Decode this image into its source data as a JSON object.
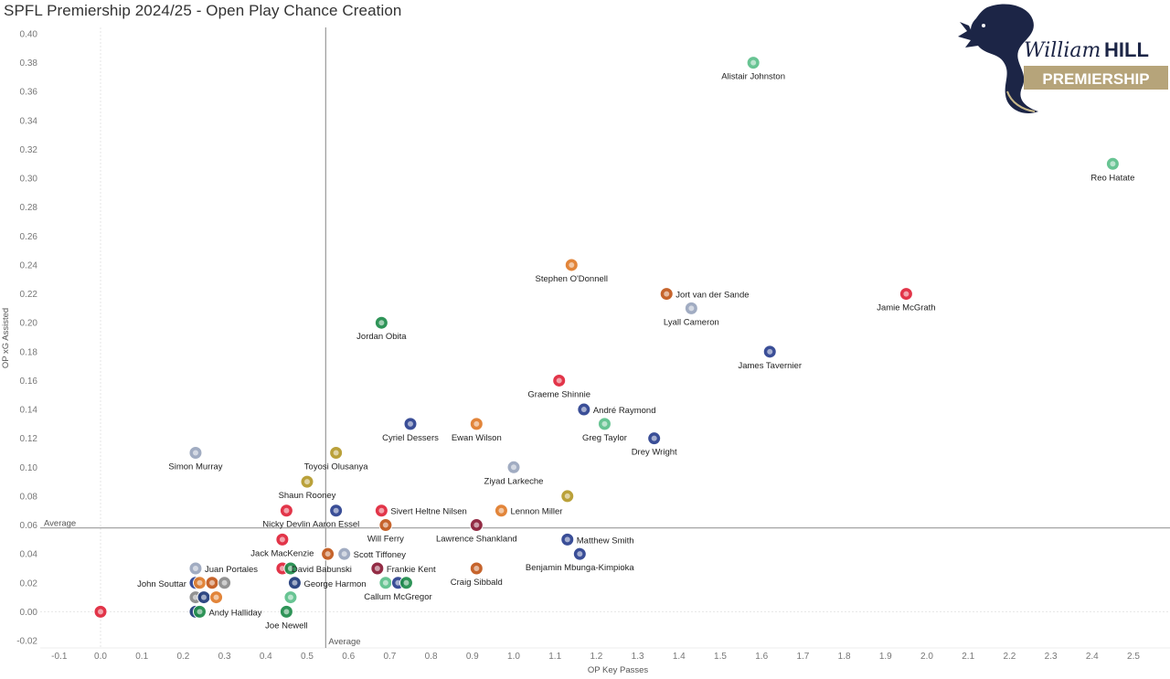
{
  "title": "SPFL Premiership 2024/25 - Open Play Chance Creation",
  "logo": {
    "brand_script": "William",
    "brand_bold": "HILL",
    "banner": "PREMIERSHIP"
  },
  "colors": {
    "celtic": "#5cbf8a",
    "aberdeen": "#e0243a",
    "motherwell": "#e07b2a",
    "dundee_utd": "#c2571b",
    "dundee": "#9aa6bd",
    "rangers": "#2a3f8f",
    "st_johnstone": "#2a3f8f",
    "st_mirren": "#b59a2a",
    "hearts": "#8a1b36",
    "hibernian": "#1e8c4a",
    "ross_county": "#1f3a7a",
    "kilmarnock": "#8a8a8a"
  },
  "chart_data": {
    "type": "scatter",
    "title": "SPFL Premiership 2024/25 - Open Play Chance Creation",
    "xlabel": "OP Key Passes",
    "ylabel": "OP xG Assisted",
    "xlim": [
      -0.15,
      2.58
    ],
    "ylim": [
      -0.025,
      0.405
    ],
    "xticks": [
      "-0.1",
      "0.0",
      "0.1",
      "0.2",
      "0.3",
      "0.4",
      "0.5",
      "0.6",
      "0.7",
      "0.8",
      "0.9",
      "1.0",
      "1.1",
      "1.2",
      "1.3",
      "1.4",
      "1.5",
      "1.6",
      "1.7",
      "1.8",
      "1.9",
      "2.0",
      "2.1",
      "2.2",
      "2.3",
      "2.4",
      "2.5"
    ],
    "yticks": [
      "-0.02",
      "0.00",
      "0.02",
      "0.04",
      "0.06",
      "0.08",
      "0.10",
      "0.12",
      "0.14",
      "0.16",
      "0.18",
      "0.20",
      "0.22",
      "0.24",
      "0.26",
      "0.28",
      "0.30",
      "0.32",
      "0.34",
      "0.36",
      "0.38",
      "0.40"
    ],
    "grid": false,
    "reference_lines": [
      {
        "axis": "x",
        "value": 0.545,
        "label": "Average"
      },
      {
        "axis": "y",
        "value": 0.058,
        "label": "Average"
      }
    ],
    "points": [
      {
        "name": "Alistair Johnston",
        "x": 1.58,
        "y": 0.38,
        "team": "celtic",
        "label_pos": "below"
      },
      {
        "name": "Reo Hatate",
        "x": 2.45,
        "y": 0.31,
        "team": "celtic",
        "label_pos": "below"
      },
      {
        "name": "Stephen O'Donnell",
        "x": 1.14,
        "y": 0.24,
        "team": "motherwell",
        "label_pos": "below"
      },
      {
        "name": "Jort van der Sande",
        "x": 1.37,
        "y": 0.22,
        "team": "dundee_utd",
        "label_pos": "right"
      },
      {
        "name": "Lyall Cameron",
        "x": 1.43,
        "y": 0.21,
        "team": "dundee",
        "label_pos": "below"
      },
      {
        "name": "Jamie McGrath",
        "x": 1.95,
        "y": 0.22,
        "team": "aberdeen",
        "label_pos": "below"
      },
      {
        "name": "Jordan Obita",
        "x": 0.68,
        "y": 0.2,
        "team": "hibernian",
        "label_pos": "below"
      },
      {
        "name": "James Tavernier",
        "x": 1.62,
        "y": 0.18,
        "team": "rangers",
        "label_pos": "below"
      },
      {
        "name": "Graeme Shinnie",
        "x": 1.11,
        "y": 0.16,
        "team": "aberdeen",
        "label_pos": "below"
      },
      {
        "name": "André Raymond",
        "x": 1.17,
        "y": 0.14,
        "team": "st_johnstone",
        "label_pos": "right"
      },
      {
        "name": "Greg Taylor",
        "x": 1.22,
        "y": 0.13,
        "team": "celtic",
        "label_pos": "below"
      },
      {
        "name": "Drey Wright",
        "x": 1.34,
        "y": 0.12,
        "team": "st_johnstone",
        "label_pos": "below"
      },
      {
        "name": "Cyriel Dessers",
        "x": 0.75,
        "y": 0.13,
        "team": "rangers",
        "label_pos": "below"
      },
      {
        "name": "Ewan Wilson",
        "x": 0.91,
        "y": 0.13,
        "team": "motherwell",
        "label_pos": "below"
      },
      {
        "name": "Simon Murray",
        "x": 0.23,
        "y": 0.11,
        "team": "dundee",
        "label_pos": "below"
      },
      {
        "name": "Toyosi Olusanya",
        "x": 0.57,
        "y": 0.11,
        "team": "st_mirren",
        "label_pos": "below"
      },
      {
        "name": "Ziyad Larkeche",
        "x": 1.0,
        "y": 0.1,
        "team": "dundee",
        "label_pos": "below"
      },
      {
        "name": "Shaun Rooney",
        "x": 0.5,
        "y": 0.09,
        "team": "st_mirren",
        "label_pos": "below"
      },
      {
        "name": "",
        "x": 1.13,
        "y": 0.08,
        "team": "st_mirren",
        "label_pos": "none"
      },
      {
        "name": "Nicky Devlin",
        "x": 0.45,
        "y": 0.07,
        "team": "aberdeen",
        "label_pos": "below"
      },
      {
        "name": "Aaron Essel",
        "x": 0.57,
        "y": 0.07,
        "team": "st_johnstone",
        "label_pos": "below"
      },
      {
        "name": "Sivert Heltne Nilsen",
        "x": 0.68,
        "y": 0.07,
        "team": "aberdeen",
        "label_pos": "right"
      },
      {
        "name": "Lennon Miller",
        "x": 0.97,
        "y": 0.07,
        "team": "motherwell",
        "label_pos": "right"
      },
      {
        "name": "Will Ferry",
        "x": 0.69,
        "y": 0.06,
        "team": "dundee_utd",
        "label_pos": "below"
      },
      {
        "name": "Lawrence Shankland",
        "x": 0.91,
        "y": 0.06,
        "team": "hearts",
        "label_pos": "below"
      },
      {
        "name": "Matthew Smith",
        "x": 1.13,
        "y": 0.05,
        "team": "st_johnstone",
        "label_pos": "right"
      },
      {
        "name": "Benjamin Mbunga-Kimpioka",
        "x": 1.16,
        "y": 0.04,
        "team": "st_johnstone",
        "label_pos": "below"
      },
      {
        "name": "Jack MacKenzie",
        "x": 0.44,
        "y": 0.05,
        "team": "aberdeen",
        "label_pos": "below"
      },
      {
        "name": "David Babunski",
        "x": 0.55,
        "y": 0.04,
        "team": "dundee_utd",
        "label_pos": "none"
      },
      {
        "name": "Scott Tiffoney",
        "x": 0.59,
        "y": 0.04,
        "team": "dundee",
        "label_pos": "right"
      },
      {
        "name": "Juan Portales",
        "x": 0.23,
        "y": 0.03,
        "team": "dundee",
        "label_pos": "right"
      },
      {
        "name": "David Babunski",
        "x": 0.44,
        "y": 0.03,
        "team": "aberdeen",
        "label_pos": "right"
      },
      {
        "name": "",
        "x": 0.46,
        "y": 0.03,
        "team": "hibernian",
        "label_pos": "none"
      },
      {
        "name": "Frankie Kent",
        "x": 0.67,
        "y": 0.03,
        "team": "hearts",
        "label_pos": "right"
      },
      {
        "name": "Craig Sibbald",
        "x": 0.91,
        "y": 0.03,
        "team": "dundee_utd",
        "label_pos": "below"
      },
      {
        "name": "John Souttar",
        "x": 0.23,
        "y": 0.02,
        "team": "rangers",
        "label_pos": "left"
      },
      {
        "name": "",
        "x": 0.24,
        "y": 0.02,
        "team": "motherwell",
        "label_pos": "none"
      },
      {
        "name": "",
        "x": 0.27,
        "y": 0.02,
        "team": "dundee_utd",
        "label_pos": "none"
      },
      {
        "name": "",
        "x": 0.3,
        "y": 0.02,
        "team": "kilmarnock",
        "label_pos": "none"
      },
      {
        "name": "George Harmon",
        "x": 0.47,
        "y": 0.02,
        "team": "ross_county",
        "label_pos": "right"
      },
      {
        "name": "",
        "x": 0.69,
        "y": 0.02,
        "team": "celtic",
        "label_pos": "none"
      },
      {
        "name": "Callum McGregor",
        "x": 0.72,
        "y": 0.02,
        "team": "rangers",
        "label_pos": "below"
      },
      {
        "name": "",
        "x": 0.74,
        "y": 0.02,
        "team": "hibernian",
        "label_pos": "none"
      },
      {
        "name": "",
        "x": 0.23,
        "y": 0.01,
        "team": "kilmarnock",
        "label_pos": "none"
      },
      {
        "name": "",
        "x": 0.25,
        "y": 0.01,
        "team": "ross_county",
        "label_pos": "none"
      },
      {
        "name": "",
        "x": 0.28,
        "y": 0.01,
        "team": "motherwell",
        "label_pos": "none"
      },
      {
        "name": "",
        "x": 0.46,
        "y": 0.01,
        "team": "celtic",
        "label_pos": "none"
      },
      {
        "name": "",
        "x": 0.23,
        "y": 0.0,
        "team": "ross_county",
        "label_pos": "none"
      },
      {
        "name": "Andy Halliday",
        "x": 0.24,
        "y": 0.0,
        "team": "hibernian",
        "label_pos": "right"
      },
      {
        "name": "Joe Newell",
        "x": 0.45,
        "y": 0.0,
        "team": "hibernian",
        "label_pos": "below"
      },
      {
        "name": "",
        "x": 0.0,
        "y": 0.0,
        "team": "aberdeen",
        "label_pos": "none"
      }
    ]
  }
}
